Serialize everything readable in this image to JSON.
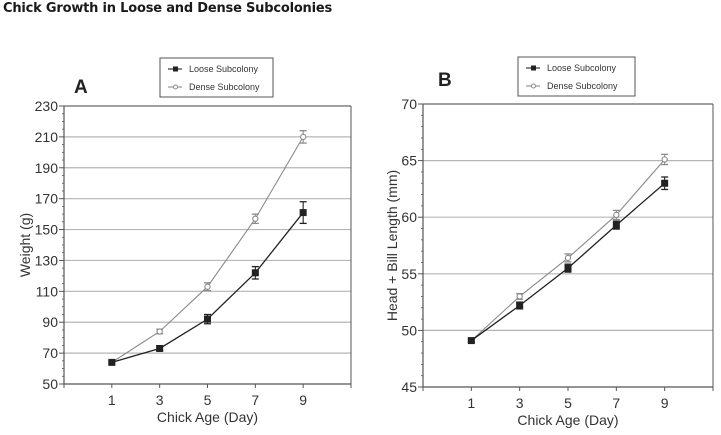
{
  "page": {
    "title": "Chick Growth in Loose and Dense Subcolonies"
  },
  "colors": {
    "loose": "#222222",
    "dense": "#8a8a8a",
    "grid": "#b5b5b5",
    "axis": "#555555"
  },
  "chart_data": [
    {
      "type": "line",
      "panel": "A",
      "title": "",
      "xlabel": "Chick Age (Day)",
      "ylabel": "Weight (g)",
      "xlim": [
        -1,
        11
      ],
      "ylim": [
        50,
        230
      ],
      "xticks": [
        1,
        3,
        5,
        7,
        9
      ],
      "yticks": [
        50,
        70,
        90,
        110,
        130,
        150,
        170,
        190,
        210,
        230
      ],
      "grid": true,
      "legend_position": "top-center",
      "x": [
        1,
        3,
        5,
        7,
        9
      ],
      "series": [
        {
          "name": "Loose Subcolony",
          "marker": "filled-square",
          "values": [
            64,
            73,
            92,
            122,
            161
          ],
          "errors": [
            1,
            1.5,
            3,
            4,
            7
          ]
        },
        {
          "name": "Dense Subcolony",
          "marker": "open-circle",
          "values": [
            64,
            84,
            113,
            157,
            210
          ],
          "errors": [
            1,
            1.5,
            2.5,
            3,
            4
          ]
        }
      ]
    },
    {
      "type": "line",
      "panel": "B",
      "title": "",
      "xlabel": "Chick Age (Day)",
      "ylabel": "Head + Bill Length (mm)",
      "xlim": [
        -1,
        11
      ],
      "ylim": [
        45,
        70
      ],
      "xticks": [
        1,
        3,
        5,
        7,
        9
      ],
      "yticks": [
        45,
        50,
        55,
        60,
        65,
        70
      ],
      "grid": true,
      "legend_position": "top-center",
      "x": [
        1,
        3,
        5,
        7,
        9
      ],
      "series": [
        {
          "name": "Loose Subcolony",
          "marker": "filled-square",
          "values": [
            49.1,
            52.2,
            55.5,
            59.3,
            63.0
          ],
          "errors": [
            0.15,
            0.3,
            0.35,
            0.35,
            0.55
          ]
        },
        {
          "name": "Dense Subcolony",
          "marker": "open-circle",
          "values": [
            49.1,
            53.0,
            56.4,
            60.2,
            65.1
          ],
          "errors": [
            0.15,
            0.25,
            0.35,
            0.4,
            0.45
          ]
        }
      ]
    }
  ]
}
